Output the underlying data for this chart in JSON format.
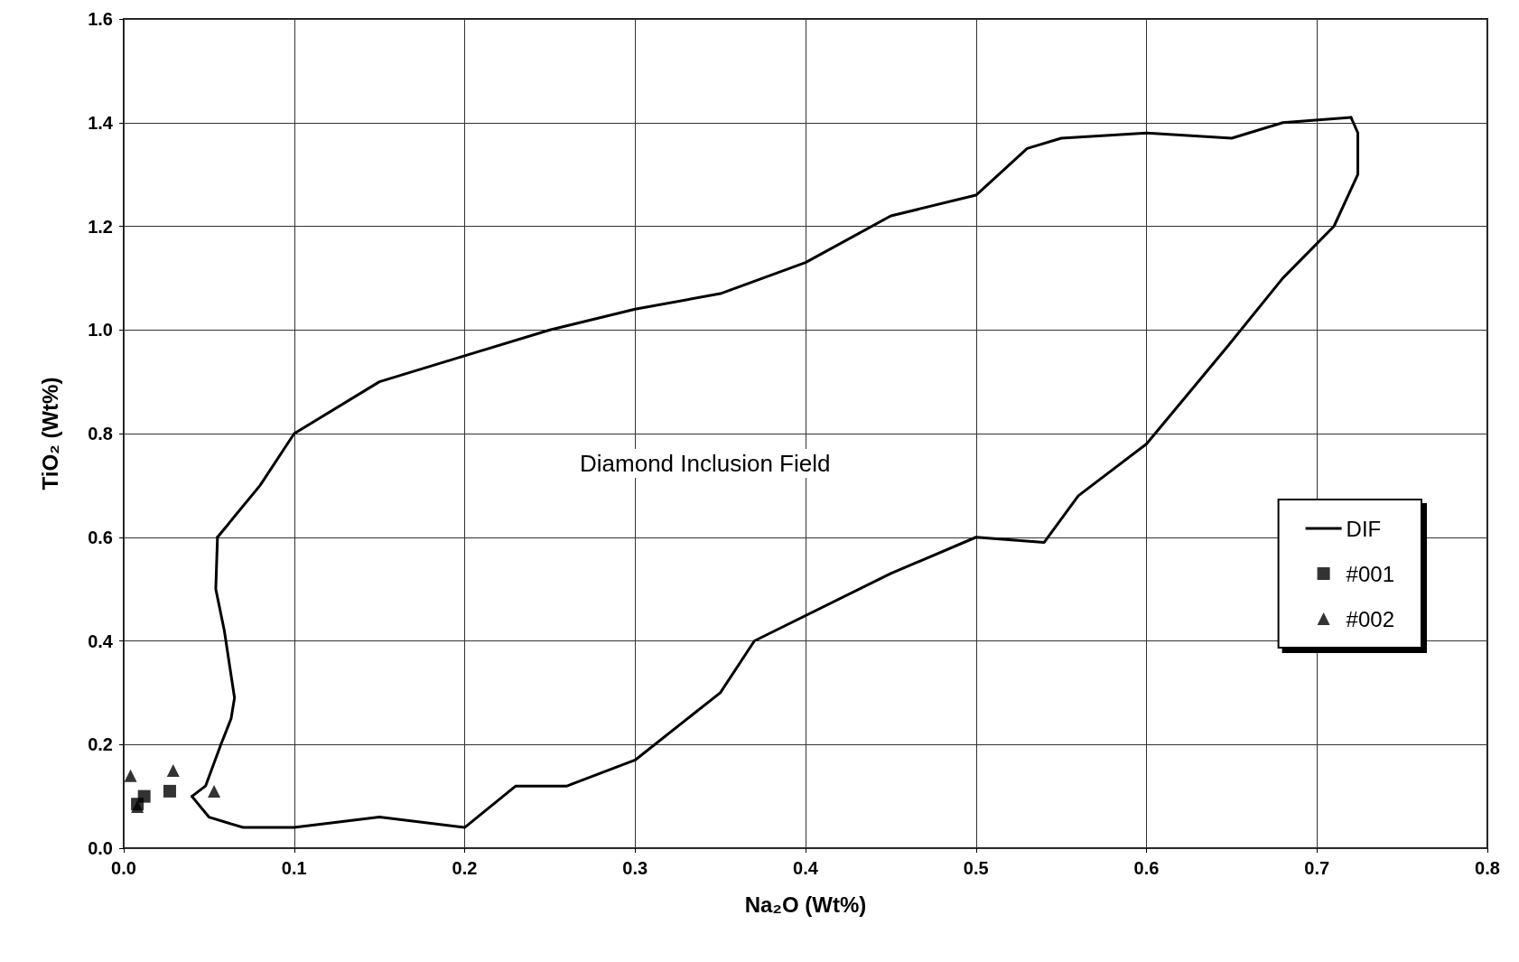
{
  "chart_data": {
    "type": "scatter",
    "xlabel": "Na₂O (Wt%)",
    "ylabel": "TiO₂ (Wt%)",
    "xlim": [
      0,
      0.8
    ],
    "ylim": [
      0,
      1.6
    ],
    "xticks": [
      {
        "value": 0,
        "label": "0.0"
      },
      0.1,
      0.2,
      0.3,
      0.4,
      0.5,
      0.6,
      0.7,
      0.8
    ],
    "yticks": [
      {
        "value": 0,
        "label": "0.0"
      },
      0.2,
      0.4,
      0.6,
      0.8,
      {
        "value": 1,
        "label": "1.0"
      },
      1.2,
      1.4,
      1.6
    ],
    "grid": true,
    "legend": "right",
    "annotations": [
      "Diamond Inclusion Field"
    ],
    "series": [
      {
        "name": "DIF",
        "type": "line",
        "color": "#000000",
        "marker": "none",
        "line_style": "solid",
        "x": [
          0.055,
          0.08,
          0.1,
          0.15,
          0.2,
          0.25,
          0.3,
          0.35,
          0.4,
          0.45,
          0.5,
          0.53,
          0.55,
          0.6,
          0.65,
          0.68,
          0.72
        ],
        "values": [
          0.6,
          0.7,
          0.8,
          0.9,
          0.95,
          1.0,
          1.04,
          1.07,
          1.13,
          1.22,
          1.26,
          1.35,
          1.37,
          1.38,
          1.37,
          1.4,
          1.41
        ]
      },
      {
        "type": "line",
        "color": "#000000",
        "marker": "none",
        "line_style": "solid",
        "x": [
          0.72,
          0.724,
          0.724,
          0.71,
          0.68,
          0.648,
          0.6,
          0.56,
          0.54,
          0.5,
          0.45,
          0.37,
          0.35,
          0.3,
          0.26,
          0.23,
          0.2,
          0.15,
          0.1,
          0.07,
          0.05,
          0.04
        ],
        "values": [
          1.41,
          1.38,
          1.3,
          1.2,
          1.1,
          0.97,
          0.78,
          0.68,
          0.59,
          0.6,
          0.53,
          0.4,
          0.3,
          0.17,
          0.12,
          0.12,
          0.04,
          0.06,
          0.04,
          0.04,
          0.06,
          0.1
        ]
      },
      {
        "type": "line",
        "color": "#000000",
        "marker": "none",
        "line_style": "solid",
        "x": [
          0.04,
          0.048,
          0.057,
          0.063,
          0.065,
          0.059,
          0.054,
          0.055
        ],
        "values": [
          0.1,
          0.12,
          0.2,
          0.25,
          0.29,
          0.42,
          0.5,
          0.6
        ]
      },
      {
        "name": "#001",
        "color": "#000000",
        "marker": "square",
        "x": [
          0.008,
          0.012,
          0.027
        ],
        "values": [
          0.085,
          0.1,
          0.11
        ]
      },
      {
        "name": "#002",
        "color": "#000000",
        "marker": "triangle",
        "x": [
          0.004,
          0.008,
          0.029,
          0.053
        ],
        "values": [
          0.14,
          0.08,
          0.15,
          0.11
        ]
      }
    ]
  }
}
